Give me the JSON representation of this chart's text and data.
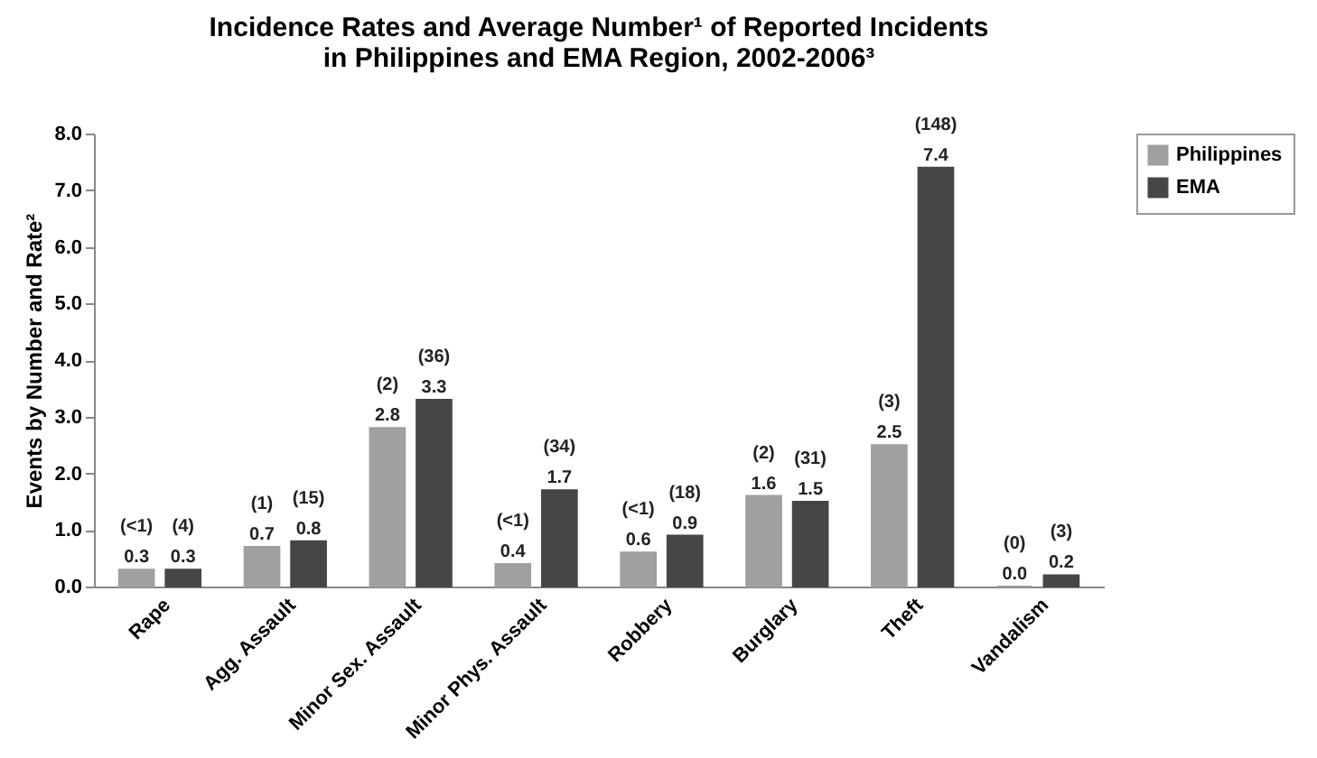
{
  "chart_data": {
    "type": "bar",
    "title": "Incidence Rates and Average Number¹ of Reported Incidents in Philippines and EMA Region, 2002-2006³",
    "ylabel": "Events by Number and Rate²",
    "categories": [
      "Rape",
      "Agg. Assault",
      "Minor Sex. Assault",
      "Minor Phys. Assault",
      "Robbery",
      "Burglary",
      "Theft",
      "Vandalism"
    ],
    "series": [
      {
        "name": "Philippines",
        "color": "#a0a0a0",
        "values": [
          0.3,
          0.7,
          2.8,
          0.4,
          0.6,
          1.6,
          2.5,
          0.0
        ],
        "value_labels": [
          "0.3",
          "0.7",
          "2.8",
          "0.4",
          "0.6",
          "1.6",
          "2.5",
          "0.0"
        ]
      },
      {
        "name": "EMA",
        "color": "#464646",
        "values": [
          0.3,
          0.8,
          3.3,
          1.7,
          0.9,
          1.5,
          7.4,
          0.2
        ],
        "value_labels": [
          "0.3",
          "0.8",
          "3.3",
          "1.7",
          "0.9",
          "1.5",
          "7.4",
          "0.2"
        ]
      }
    ],
    "annotations": [
      {
        "text": "(<1)",
        "x": "Rape",
        "y": 0.3
      },
      {
        "text": "(4)",
        "x": "Rape",
        "y": 0.3
      },
      {
        "text": "(1)",
        "x": "Agg. Assault",
        "y": 0.7
      },
      {
        "text": "(15)",
        "x": "Agg. Assault",
        "y": 0.8
      },
      {
        "text": "(2)",
        "x": "Minor Sex. Assault",
        "y": 2.8
      },
      {
        "text": "(36)",
        "x": "Minor Sex. Assault",
        "y": 3.3
      },
      {
        "text": "(<1)",
        "x": "Minor Phys. Assault",
        "y": 0.4
      },
      {
        "text": "(34)",
        "x": "Minor Phys. Assault",
        "y": 1.7
      },
      {
        "text": "(<1)",
        "x": "Robbery",
        "y": 0.6
      },
      {
        "text": "(18)",
        "x": "Robbery",
        "y": 0.9
      },
      {
        "text": "(2)",
        "x": "Burglary",
        "y": 1.6
      },
      {
        "text": "(31)",
        "x": "Burglary",
        "y": 1.5
      },
      {
        "text": "(3)",
        "x": "Theft",
        "y": 2.5
      },
      {
        "text": "(148)",
        "x": "Theft",
        "y": 7.4
      },
      {
        "text": "(0)",
        "x": "Vandalism",
        "y": 0.0
      },
      {
        "text": "(3)",
        "x": "Vandalism",
        "y": 0.2
      }
    ],
    "ylim": [
      0,
      8
    ],
    "yticks": [
      {
        "value": 0,
        "label": "0.0"
      },
      {
        "value": 1,
        "label": "1.0"
      },
      {
        "value": 2,
        "label": "2.0"
      },
      {
        "value": 3,
        "label": "3.0"
      },
      {
        "value": 4,
        "label": "4.0"
      },
      {
        "value": 5,
        "label": "5.0"
      },
      {
        "value": 6,
        "label": "6.0"
      },
      {
        "value": 7,
        "label": "7.0"
      },
      {
        "value": 8,
        "label": "8.0"
      }
    ],
    "legend": "right",
    "grid": false
  }
}
